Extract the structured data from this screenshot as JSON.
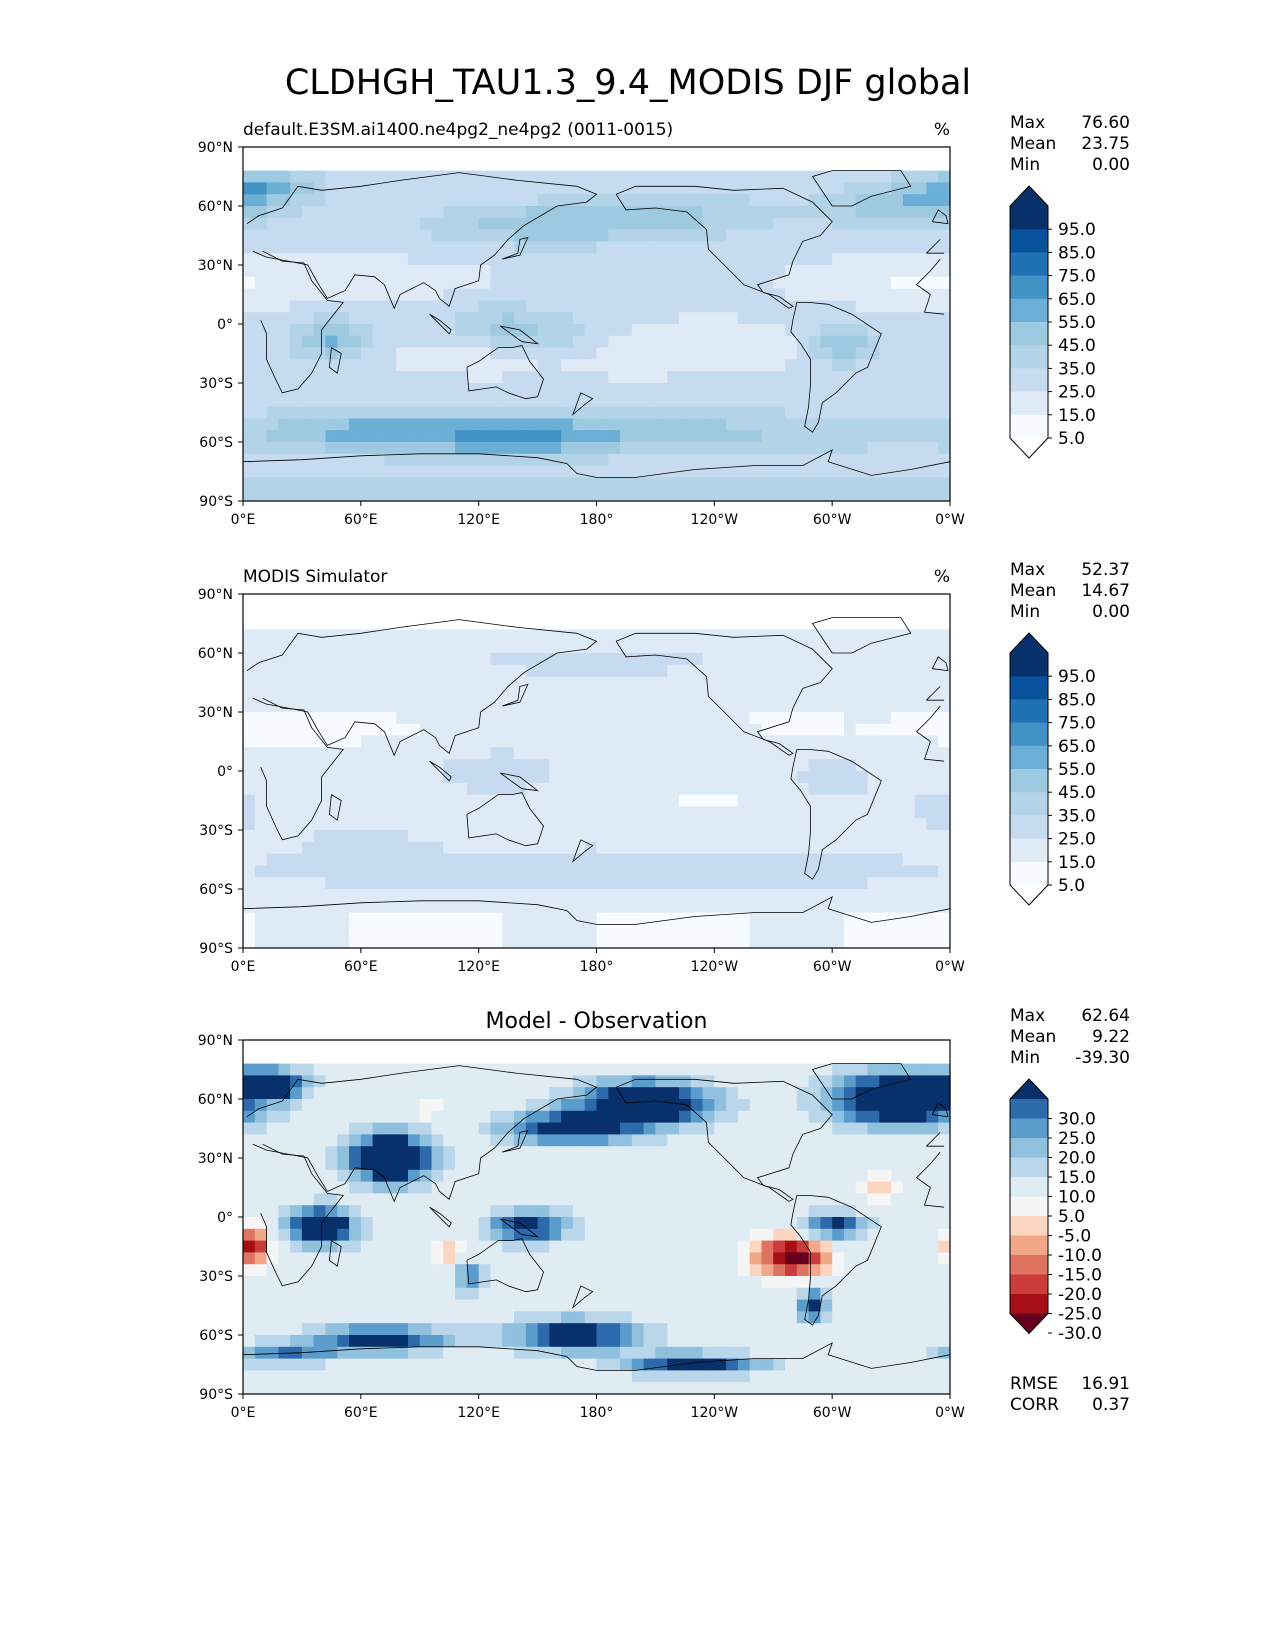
{
  "figure_title": "CLDHGH_TAU1.3_9.4_MODIS DJF global",
  "colors": {
    "seq_scale": [
      "#f7fbff",
      "#deebf7",
      "#c6dbef",
      "#b3d3e8",
      "#9ecae1",
      "#6baed6",
      "#4292c6",
      "#2171b5",
      "#08519c",
      "#08306b"
    ],
    "seq_under": "#ffffff",
    "seq_over": "#08306b",
    "div_scale": [
      "#67001f",
      "#a50f15",
      "#cb3b3b",
      "#e0735f",
      "#f2a789",
      "#fcd5c0",
      "#f5f5f5",
      "#e0ecf4",
      "#bad6ea",
      "#8fc0de",
      "#5a9ccc",
      "#2c6aab",
      "#08306b"
    ],
    "coast": "#000000",
    "frame": "#000000"
  },
  "chart_data": [
    {
      "type": "heatmap",
      "panel": "test",
      "title_left": "default.E3SM.ai1400.ne4pg2_ne4pg2 (0011-0015)",
      "title_right": "%",
      "x_ticks": [
        "0°E",
        "60°E",
        "120°E",
        "180°",
        "120°W",
        "60°W",
        "0°W"
      ],
      "y_ticks": [
        "90°N",
        "60°N",
        "30°N",
        "0°",
        "30°S",
        "60°S",
        "90°S"
      ],
      "xlim": [
        0,
        360
      ],
      "ylim": [
        -90,
        90
      ],
      "stats": [
        {
          "label": "Max",
          "value": "76.60"
        },
        {
          "label": "Mean",
          "value": "23.75"
        },
        {
          "label": "Min",
          "value": "0.00"
        }
      ],
      "colorbar": {
        "levels": [
          0,
          10,
          20,
          30,
          40,
          50,
          60,
          70,
          80,
          90,
          100
        ],
        "tick_labels": [
          "5.0",
          "15.0",
          "25.0",
          "35.0",
          "45.0",
          "55.0",
          "65.0",
          "75.0",
          "85.0",
          "95.0"
        ],
        "extend": "both"
      },
      "value_range": [
        0,
        76.6
      ],
      "mean_estimate": 23.75
    },
    {
      "type": "heatmap",
      "panel": "reference",
      "title_left": "MODIS Simulator",
      "title_right": "%",
      "x_ticks": [
        "0°E",
        "60°E",
        "120°E",
        "180°",
        "120°W",
        "60°W",
        "0°W"
      ],
      "y_ticks": [
        "90°N",
        "60°N",
        "30°N",
        "0°",
        "30°S",
        "60°S",
        "90°S"
      ],
      "xlim": [
        0,
        360
      ],
      "ylim": [
        -90,
        90
      ],
      "stats": [
        {
          "label": "Max",
          "value": "52.37"
        },
        {
          "label": "Mean",
          "value": "14.67"
        },
        {
          "label": "Min",
          "value": "0.00"
        }
      ],
      "colorbar": {
        "levels": [
          0,
          10,
          20,
          30,
          40,
          50,
          60,
          70,
          80,
          90,
          100
        ],
        "tick_labels": [
          "5.0",
          "15.0",
          "25.0",
          "35.0",
          "45.0",
          "55.0",
          "65.0",
          "75.0",
          "85.0",
          "95.0"
        ],
        "extend": "both"
      },
      "value_range": [
        0,
        52.37
      ],
      "mean_estimate": 14.67
    },
    {
      "type": "heatmap",
      "panel": "difference",
      "title_center": "Model - Observation",
      "x_ticks": [
        "0°E",
        "60°E",
        "120°E",
        "180°",
        "120°W",
        "60°W",
        "0°W"
      ],
      "y_ticks": [
        "90°N",
        "60°N",
        "30°N",
        "0°",
        "30°S",
        "60°S",
        "90°S"
      ],
      "xlim": [
        0,
        360
      ],
      "ylim": [
        -90,
        90
      ],
      "stats": [
        {
          "label": "Max",
          "value": "62.64"
        },
        {
          "label": "Mean",
          "value": "9.22"
        },
        {
          "label": "Min",
          "value": "-39.30"
        }
      ],
      "extra_stats": [
        {
          "label": "RMSE",
          "value": "16.91"
        },
        {
          "label": "CORR",
          "value": "0.37"
        }
      ],
      "colorbar": {
        "levels": [
          -35,
          -30,
          -25,
          -20,
          -15,
          -10,
          -5,
          5,
          10,
          15,
          20,
          25,
          30,
          35
        ],
        "tick_labels": [
          "-30.0",
          "-25.0",
          "-20.0",
          "-15.0",
          "-10.0",
          "-5.0",
          "5.0",
          "10.0",
          "15.0",
          "20.0",
          "25.0",
          "30.0"
        ],
        "extend": "both"
      },
      "value_range": [
        -39.3,
        62.64
      ],
      "mean_estimate": 9.22
    }
  ]
}
